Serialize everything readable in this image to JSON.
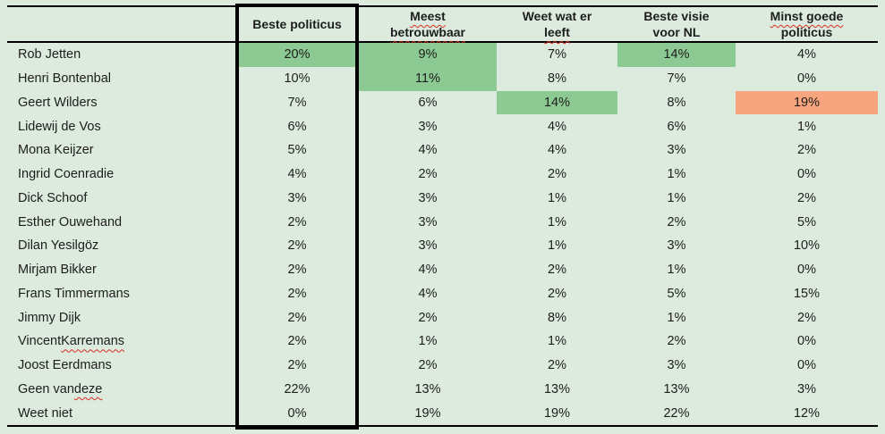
{
  "colors": {
    "background": "#dcebdd",
    "highlight_green": "#8dc993",
    "highlight_orange": "#f6a57e",
    "grid_line": "#000000",
    "text": "#1d1d1d",
    "spellcheck_red": "#da2c20"
  },
  "table": {
    "corner_label": "",
    "columns": [
      {
        "label": "Beste politicus",
        "lines": [
          [
            {
              "t": "Beste politicus",
              "sp": false
            }
          ]
        ]
      },
      {
        "label": "Meest betrouwbaar",
        "lines": [
          [
            {
              "t": "Meest",
              "sp": true
            }
          ],
          [
            {
              "t": "betrouwbaar",
              "sp": true
            }
          ]
        ]
      },
      {
        "label": "Weet wat er leeft",
        "lines": [
          [
            {
              "t": "Weet wat er",
              "sp": false
            }
          ],
          [
            {
              "t": "leeft",
              "sp": true
            }
          ]
        ]
      },
      {
        "label": "Beste visie voor NL",
        "lines": [
          [
            {
              "t": "Beste visie",
              "sp": false
            }
          ],
          [
            {
              "t": "voor NL",
              "sp": false
            }
          ]
        ]
      },
      {
        "label": "Minst goede politicus",
        "lines": [
          [
            {
              "t": "Minst goede",
              "sp": true
            }
          ],
          [
            {
              "t": "politicus",
              "sp": false
            }
          ]
        ]
      }
    ],
    "rows": [
      {
        "name_parts": [
          {
            "t": "Rob Jetten",
            "sp": false
          }
        ],
        "values": [
          "20%",
          "9%",
          "7%",
          "14%",
          "4%"
        ],
        "highlight": [
          "green",
          "green",
          null,
          "green",
          null
        ]
      },
      {
        "name_parts": [
          {
            "t": "Henri Bontenbal",
            "sp": false
          }
        ],
        "values": [
          "10%",
          "11%",
          "8%",
          "7%",
          "0%"
        ],
        "highlight": [
          null,
          "green",
          null,
          null,
          null
        ]
      },
      {
        "name_parts": [
          {
            "t": "Geert Wilders",
            "sp": false
          }
        ],
        "values": [
          "7%",
          "6%",
          "14%",
          "8%",
          "19%"
        ],
        "highlight": [
          null,
          null,
          "green",
          null,
          "orange"
        ]
      },
      {
        "name_parts": [
          {
            "t": "Lidewij de Vos",
            "sp": false
          }
        ],
        "values": [
          "6%",
          "3%",
          "4%",
          "6%",
          "1%"
        ],
        "highlight": [
          null,
          null,
          null,
          null,
          null
        ]
      },
      {
        "name_parts": [
          {
            "t": "Mona Keijzer",
            "sp": false
          }
        ],
        "values": [
          "5%",
          "4%",
          "4%",
          "3%",
          "2%"
        ],
        "highlight": [
          null,
          null,
          null,
          null,
          null
        ]
      },
      {
        "name_parts": [
          {
            "t": "Ingrid Coenradie",
            "sp": false
          }
        ],
        "values": [
          "4%",
          "2%",
          "2%",
          "1%",
          "0%"
        ],
        "highlight": [
          null,
          null,
          null,
          null,
          null
        ]
      },
      {
        "name_parts": [
          {
            "t": "Dick Schoof",
            "sp": false
          }
        ],
        "values": [
          "3%",
          "3%",
          "1%",
          "1%",
          "2%"
        ],
        "highlight": [
          null,
          null,
          null,
          null,
          null
        ]
      },
      {
        "name_parts": [
          {
            "t": "Esther Ouwehand",
            "sp": false
          }
        ],
        "values": [
          "2%",
          "3%",
          "1%",
          "2%",
          "5%"
        ],
        "highlight": [
          null,
          null,
          null,
          null,
          null
        ]
      },
      {
        "name_parts": [
          {
            "t": "Dilan Yesilgöz",
            "sp": false
          }
        ],
        "values": [
          "2%",
          "3%",
          "1%",
          "3%",
          "10%"
        ],
        "highlight": [
          null,
          null,
          null,
          null,
          null
        ]
      },
      {
        "name_parts": [
          {
            "t": "Mirjam Bikker",
            "sp": false
          }
        ],
        "values": [
          "2%",
          "4%",
          "2%",
          "1%",
          "0%"
        ],
        "highlight": [
          null,
          null,
          null,
          null,
          null
        ]
      },
      {
        "name_parts": [
          {
            "t": "Frans Timmermans",
            "sp": false
          }
        ],
        "values": [
          "2%",
          "4%",
          "2%",
          "5%",
          "15%"
        ],
        "highlight": [
          null,
          null,
          null,
          null,
          null
        ]
      },
      {
        "name_parts": [
          {
            "t": "Jimmy Dijk",
            "sp": false
          }
        ],
        "values": [
          "2%",
          "2%",
          "8%",
          "1%",
          "2%"
        ],
        "highlight": [
          null,
          null,
          null,
          null,
          null
        ]
      },
      {
        "name_parts": [
          {
            "t": "Vincent ",
            "sp": false
          },
          {
            "t": "Karremans",
            "sp": true
          }
        ],
        "values": [
          "2%",
          "1%",
          "1%",
          "2%",
          "0%"
        ],
        "highlight": [
          null,
          null,
          null,
          null,
          null
        ]
      },
      {
        "name_parts": [
          {
            "t": "Joost Eerdmans",
            "sp": false
          }
        ],
        "values": [
          "2%",
          "2%",
          "2%",
          "3%",
          "0%"
        ],
        "highlight": [
          null,
          null,
          null,
          null,
          null
        ]
      },
      {
        "name_parts": [
          {
            "t": "Geen van ",
            "sp": false
          },
          {
            "t": "deze",
            "sp": true
          }
        ],
        "values": [
          "22%",
          "13%",
          "13%",
          "13%",
          "3%"
        ],
        "highlight": [
          null,
          null,
          null,
          null,
          null
        ]
      },
      {
        "name_parts": [
          {
            "t": "Weet niet",
            "sp": false
          }
        ],
        "values": [
          "0%",
          "19%",
          "19%",
          "22%",
          "12%"
        ],
        "highlight": [
          null,
          null,
          null,
          null,
          null
        ]
      }
    ]
  },
  "chart_data": {
    "type": "table",
    "title": "",
    "unit": "%",
    "categories": [
      "Beste politicus",
      "Meest betrouwbaar",
      "Weet wat er leeft",
      "Beste visie voor NL",
      "Minst goede politicus"
    ],
    "rows": [
      "Rob Jetten",
      "Henri Bontenbal",
      "Geert Wilders",
      "Lidewij de Vos",
      "Mona Keijzer",
      "Ingrid Coenradie",
      "Dick Schoof",
      "Esther Ouwehand",
      "Dilan Yesilgöz",
      "Mirjam Bikker",
      "Frans Timmermans",
      "Jimmy Dijk",
      "Vincent Karremans",
      "Joost Eerdmans",
      "Geen van deze",
      "Weet niet"
    ],
    "series": [
      {
        "name": "Beste politicus",
        "values": [
          20,
          10,
          7,
          6,
          5,
          4,
          3,
          2,
          2,
          2,
          2,
          2,
          2,
          2,
          22,
          0
        ]
      },
      {
        "name": "Meest betrouwbaar",
        "values": [
          9,
          11,
          6,
          3,
          4,
          2,
          3,
          3,
          3,
          4,
          4,
          2,
          1,
          2,
          13,
          19
        ]
      },
      {
        "name": "Weet wat er leeft",
        "values": [
          7,
          8,
          14,
          4,
          4,
          2,
          1,
          1,
          1,
          2,
          2,
          8,
          1,
          2,
          13,
          19
        ]
      },
      {
        "name": "Beste visie voor NL",
        "values": [
          14,
          7,
          8,
          6,
          3,
          1,
          1,
          2,
          3,
          1,
          5,
          1,
          2,
          3,
          13,
          22
        ]
      },
      {
        "name": "Minst goede politicus",
        "values": [
          4,
          0,
          19,
          1,
          2,
          0,
          2,
          5,
          10,
          0,
          15,
          2,
          0,
          0,
          3,
          12
        ]
      }
    ],
    "highlighted_cells": [
      {
        "row": "Rob Jetten",
        "column": "Beste politicus",
        "value": 20,
        "color": "green"
      },
      {
        "row": "Rob Jetten",
        "column": "Meest betrouwbaar",
        "value": 9,
        "color": "green"
      },
      {
        "row": "Rob Jetten",
        "column": "Beste visie voor NL",
        "value": 14,
        "color": "green"
      },
      {
        "row": "Henri Bontenbal",
        "column": "Meest betrouwbaar",
        "value": 11,
        "color": "green"
      },
      {
        "row": "Geert Wilders",
        "column": "Weet wat er leeft",
        "value": 14,
        "color": "green"
      },
      {
        "row": "Geert Wilders",
        "column": "Minst goede politicus",
        "value": 19,
        "color": "orange"
      }
    ],
    "framed_column": "Beste politicus"
  }
}
